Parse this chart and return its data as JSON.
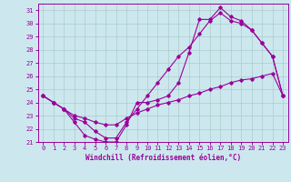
{
  "xlabel": "Windchill (Refroidissement éolien,°C)",
  "background_color": "#cce8ee",
  "line_color": "#990099",
  "grid_color": "#aacccc",
  "ylim": [
    21,
    31.5
  ],
  "xlim": [
    -0.5,
    23.5
  ],
  "yticks": [
    21,
    22,
    23,
    24,
    25,
    26,
    27,
    28,
    29,
    30,
    31
  ],
  "xticks": [
    0,
    1,
    2,
    3,
    4,
    5,
    6,
    7,
    8,
    9,
    10,
    11,
    12,
    13,
    14,
    15,
    16,
    17,
    18,
    19,
    20,
    21,
    22,
    23
  ],
  "series1_x": [
    0,
    1,
    2,
    3,
    4,
    5,
    6,
    7,
    8,
    9,
    10,
    11,
    12,
    13,
    14,
    15,
    16,
    17,
    18,
    19,
    20,
    21,
    22,
    23
  ],
  "series1_y": [
    24.5,
    24.0,
    23.5,
    22.5,
    21.5,
    21.2,
    21.0,
    21.0,
    22.3,
    24.0,
    24.0,
    24.2,
    24.5,
    25.5,
    27.8,
    30.3,
    30.3,
    31.2,
    30.5,
    30.2,
    29.5,
    28.5,
    27.5,
    24.5
  ],
  "series2_x": [
    0,
    1,
    2,
    3,
    4,
    5,
    6,
    7,
    8,
    9,
    10,
    11,
    12,
    13,
    14,
    15,
    16,
    17,
    18,
    19,
    20,
    21,
    22,
    23
  ],
  "series2_y": [
    24.5,
    24.0,
    23.5,
    22.8,
    22.5,
    21.8,
    21.3,
    21.3,
    22.5,
    23.5,
    24.5,
    25.5,
    26.5,
    27.5,
    28.2,
    29.2,
    30.2,
    30.8,
    30.2,
    30.0,
    29.5,
    28.5,
    27.5,
    24.5
  ],
  "series3_x": [
    0,
    1,
    2,
    3,
    4,
    5,
    6,
    7,
    8,
    9,
    10,
    11,
    12,
    13,
    14,
    15,
    16,
    17,
    18,
    19,
    20,
    21,
    22,
    23
  ],
  "series3_y": [
    24.5,
    24.0,
    23.5,
    23.0,
    22.8,
    22.5,
    22.3,
    22.3,
    22.8,
    23.2,
    23.5,
    23.8,
    24.0,
    24.2,
    24.5,
    24.7,
    25.0,
    25.2,
    25.5,
    25.7,
    25.8,
    26.0,
    26.2,
    24.5
  ]
}
